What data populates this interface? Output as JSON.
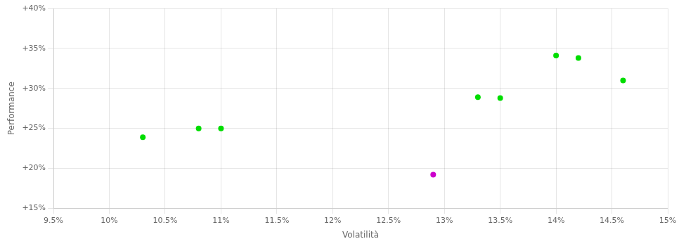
{
  "chart_data": {
    "type": "scatter",
    "xlabel": "Volatilità",
    "ylabel": "Performance",
    "xlim": [
      0.095,
      0.15
    ],
    "ylim": [
      0.15,
      0.4
    ],
    "xticks": [
      {
        "value": 0.095,
        "label": "9.5%"
      },
      {
        "value": 0.1,
        "label": "10%"
      },
      {
        "value": 0.105,
        "label": "10.5%"
      },
      {
        "value": 0.11,
        "label": "11%"
      },
      {
        "value": 0.115,
        "label": "11.5%"
      },
      {
        "value": 0.12,
        "label": "12%"
      },
      {
        "value": 0.125,
        "label": "12.5%"
      },
      {
        "value": 0.13,
        "label": "13%"
      },
      {
        "value": 0.135,
        "label": "13.5%"
      },
      {
        "value": 0.14,
        "label": "14%"
      },
      {
        "value": 0.145,
        "label": "14.5%"
      },
      {
        "value": 0.15,
        "label": "15%"
      }
    ],
    "yticks": [
      {
        "value": 0.15,
        "label": "+15%"
      },
      {
        "value": 0.2,
        "label": "+20%"
      },
      {
        "value": 0.25,
        "label": "+25%"
      },
      {
        "value": 0.3,
        "label": "+30%"
      },
      {
        "value": 0.35,
        "label": "+35%"
      },
      {
        "value": 0.4,
        "label": "+40%"
      }
    ],
    "grid": true,
    "series": [
      {
        "color": "#00dd00",
        "x": [
          0.103,
          0.108,
          0.11,
          0.133,
          0.135,
          0.14,
          0.142,
          0.146
        ],
        "values": [
          0.239,
          0.25,
          0.25,
          0.289,
          0.288,
          0.341,
          0.338,
          0.31
        ]
      },
      {
        "color": "#cc00cc",
        "x": [
          0.129
        ],
        "values": [
          0.192
        ]
      }
    ]
  }
}
